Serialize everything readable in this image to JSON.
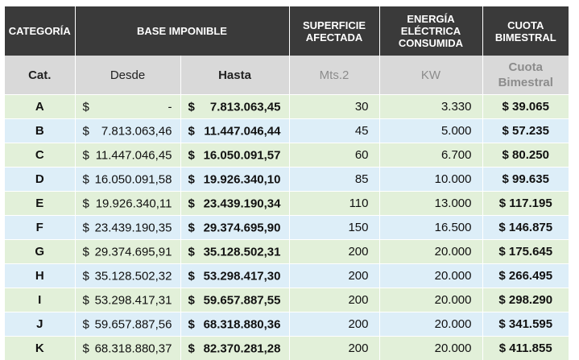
{
  "header": {
    "categoria": "CATEGORÍA",
    "base_imponible": "BASE IMPONIBLE",
    "superficie_l1": "SUPERFICIE",
    "superficie_l2": "AFECTADA",
    "energia_l1": "ENERGÍA",
    "energia_l2": "ELÉCTRICA",
    "energia_l3": "CONSUMIDA",
    "cuota_l1": "CUOTA",
    "cuota_l2": "BIMESTRAL"
  },
  "subheader": {
    "cat": "Cat.",
    "desde": "Desde",
    "hasta": "Hasta",
    "mts": "Mts.2",
    "kw": "KW",
    "cuota_l1": "Cuota",
    "cuota_l2": "Bimestral"
  },
  "currency_symbol": "$",
  "rows": [
    {
      "cat": "A",
      "desde": "-",
      "hasta": "7.813.063,45",
      "mts": "30",
      "kw": "3.330",
      "cuota": "$ 39.065"
    },
    {
      "cat": "B",
      "desde": "7.813.063,46",
      "hasta": "11.447.046,44",
      "mts": "45",
      "kw": "5.000",
      "cuota": "$ 57.235"
    },
    {
      "cat": "C",
      "desde": "11.447.046,45",
      "hasta": "16.050.091,57",
      "mts": "60",
      "kw": "6.700",
      "cuota": "$ 80.250"
    },
    {
      "cat": "D",
      "desde": "16.050.091,58",
      "hasta": "19.926.340,10",
      "mts": "85",
      "kw": "10.000",
      "cuota": "$ 99.635"
    },
    {
      "cat": "E",
      "desde": "19.926.340,11",
      "hasta": "23.439.190,34",
      "mts": "110",
      "kw": "13.000",
      "cuota": "$ 117.195"
    },
    {
      "cat": "F",
      "desde": "23.439.190,35",
      "hasta": "29.374.695,90",
      "mts": "150",
      "kw": "16.500",
      "cuota": "$ 146.875"
    },
    {
      "cat": "G",
      "desde": "29.374.695,91",
      "hasta": "35.128.502,31",
      "mts": "200",
      "kw": "20.000",
      "cuota": "$ 175.645"
    },
    {
      "cat": "H",
      "desde": "35.128.502,32",
      "hasta": "53.298.417,30",
      "mts": "200",
      "kw": "20.000",
      "cuota": "$ 266.495"
    },
    {
      "cat": "I",
      "desde": "53.298.417,31",
      "hasta": "59.657.887,55",
      "mts": "200",
      "kw": "20.000",
      "cuota": "$ 298.290"
    },
    {
      "cat": "J",
      "desde": "59.657.887,56",
      "hasta": "68.318.880,36",
      "mts": "200",
      "kw": "20.000",
      "cuota": "$ 341.595"
    },
    {
      "cat": "K",
      "desde": "68.318.880,37",
      "hasta": "82.370.281,28",
      "mts": "200",
      "kw": "20.000",
      "cuota": "$ 411.855"
    }
  ],
  "colors": {
    "header_bg": "#3a3a3a",
    "subheader_bg": "#d9d9d9",
    "row_green": "#e2f0d9",
    "row_blue": "#ddeef8"
  }
}
